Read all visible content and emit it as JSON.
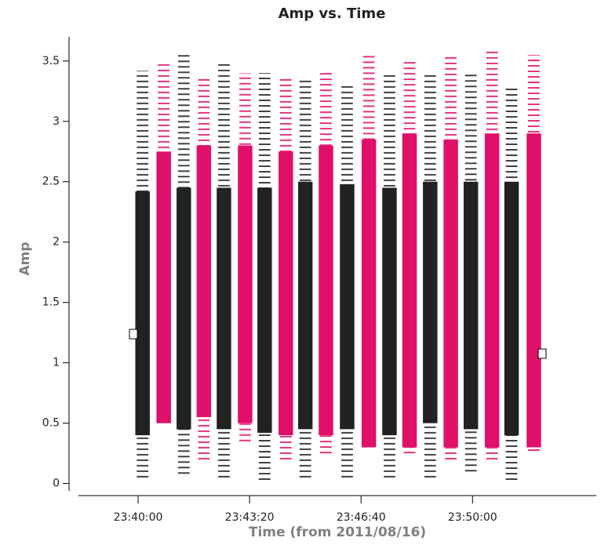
{
  "chart_data": {
    "type": "strip",
    "title": "Amp vs. Time",
    "xlabel": "Time (from 2011/08/16)",
    "ylabel": "Amp",
    "xlim": [
      85093,
      86022
    ],
    "ylim": [
      -0.1,
      3.7
    ],
    "xticks": [
      {
        "value": 85200,
        "label": "23:40:00"
      },
      {
        "value": 85400,
        "label": "23:43:20"
      },
      {
        "value": 85600,
        "label": "23:46:40"
      },
      {
        "value": 85800,
        "label": "23:50:00"
      }
    ],
    "yticks": [
      0,
      0.5,
      1,
      1.5,
      2,
      2.5,
      3,
      3.5
    ],
    "strip_width": 26,
    "series": [
      {
        "color": "#222222",
        "x": [
          85208,
          85282,
          85354,
          85427,
          85500,
          85575,
          85651,
          85724,
          85797,
          85870
        ],
        "core_low": [
          0.4,
          0.45,
          0.45,
          0.42,
          0.45,
          0.45,
          0.4,
          0.5,
          0.45,
          0.4
        ],
        "core_high": [
          2.42,
          2.45,
          2.45,
          2.45,
          2.5,
          2.48,
          2.45,
          2.5,
          2.5,
          2.5
        ],
        "min": [
          0.05,
          0.08,
          0.05,
          0.03,
          0.05,
          0.05,
          0.05,
          0.05,
          0.1,
          0.03
        ],
        "max": [
          3.42,
          3.55,
          3.5,
          3.4,
          3.35,
          3.3,
          3.4,
          3.4,
          3.4,
          3.3
        ]
      },
      {
        "color": "#e0106a",
        "x": [
          85246,
          85318,
          85392,
          85465,
          85537,
          85614,
          85687,
          85761,
          85835,
          85910
        ],
        "core_low": [
          0.5,
          0.55,
          0.5,
          0.4,
          0.4,
          0.3,
          0.3,
          0.3,
          0.3,
          0.3
        ],
        "core_high": [
          2.75,
          2.8,
          2.8,
          2.75,
          2.8,
          2.85,
          2.9,
          2.85,
          2.9,
          2.9
        ],
        "min": [
          0.55,
          0.2,
          0.35,
          0.2,
          0.25,
          0.3,
          0.25,
          0.2,
          0.2,
          0.27
        ],
        "max": [
          3.5,
          3.35,
          3.4,
          3.35,
          3.4,
          3.55,
          3.5,
          3.55,
          3.6,
          3.55
        ]
      }
    ]
  }
}
